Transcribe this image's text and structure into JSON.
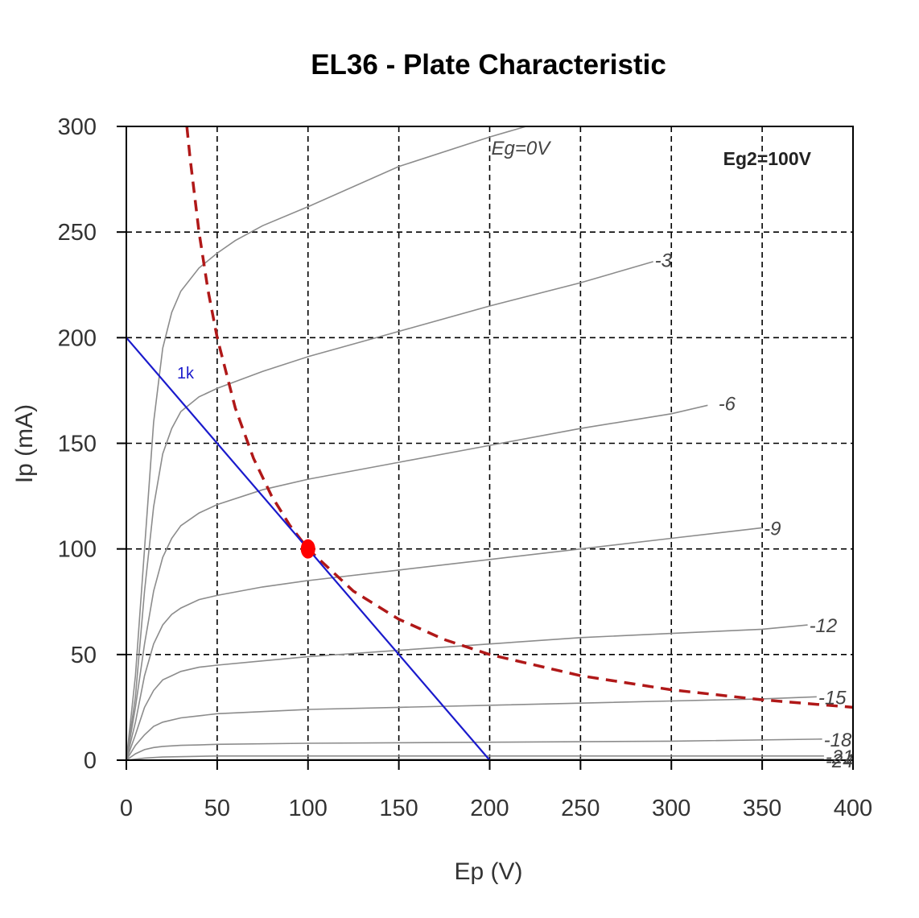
{
  "chart_data": {
    "type": "line",
    "title": "EL36 - Plate Characteristic",
    "xlabel": "Ep (V)",
    "ylabel": "Ip (mA)",
    "xlim": [
      0,
      400
    ],
    "ylim": [
      0,
      300
    ],
    "x_ticks": [
      "0",
      "50",
      "100",
      "150",
      "200",
      "250",
      "300",
      "350",
      "400"
    ],
    "y_ticks": [
      "0",
      "50",
      "100",
      "150",
      "200",
      "250",
      "300"
    ],
    "grid": true,
    "annotation": "Eg2=100V",
    "colors": {
      "curves": "#8c8c8c",
      "load_line": "#1a1acc",
      "dissipation": "#b01818",
      "operating_point": "#ff0000",
      "grid": "#000000"
    },
    "series": [
      {
        "name": "Eg=0V",
        "label": "Eg=0V",
        "label_at": [
          200,
          290
        ],
        "x": [
          0,
          5,
          10,
          15,
          20,
          25,
          30,
          40,
          50,
          60,
          75,
          100,
          150,
          200,
          220
        ],
        "y": [
          0,
          40,
          100,
          160,
          195,
          212,
          222,
          233,
          240,
          246,
          253,
          262,
          281,
          295,
          300
        ]
      },
      {
        "name": "-3",
        "label": "-3",
        "label_at": [
          290,
          237
        ],
        "x": [
          0,
          5,
          10,
          15,
          20,
          25,
          30,
          40,
          50,
          75,
          100,
          150,
          200,
          250,
          290
        ],
        "y": [
          0,
          30,
          80,
          120,
          145,
          157,
          165,
          172,
          176,
          184,
          191,
          203,
          215,
          226,
          236
        ]
      },
      {
        "name": "-6",
        "label": "-6",
        "label_at": [
          325,
          169
        ],
        "x": [
          0,
          5,
          10,
          15,
          20,
          25,
          30,
          40,
          50,
          75,
          100,
          150,
          200,
          250,
          300,
          320
        ],
        "y": [
          0,
          25,
          55,
          80,
          96,
          105,
          111,
          117,
          121,
          128,
          133,
          141,
          149,
          157,
          164,
          168
        ]
      },
      {
        "name": "-9",
        "label": "-9",
        "label_at": [
          350,
          110
        ],
        "x": [
          0,
          5,
          10,
          15,
          20,
          25,
          30,
          40,
          50,
          75,
          100,
          150,
          200,
          250,
          300,
          350
        ],
        "y": [
          0,
          18,
          40,
          55,
          64,
          69,
          72,
          76,
          78,
          82,
          85,
          90,
          95,
          100,
          105,
          110
        ]
      },
      {
        "name": "-12",
        "label": "-12",
        "label_at": [
          375,
          64
        ],
        "x": [
          0,
          5,
          10,
          15,
          20,
          25,
          30,
          40,
          50,
          75,
          100,
          150,
          200,
          250,
          300,
          350,
          375
        ],
        "y": [
          0,
          12,
          25,
          33,
          38,
          40,
          42,
          44,
          45,
          47,
          49,
          52,
          55,
          58,
          60,
          62,
          64
        ]
      },
      {
        "name": "-15",
        "label": "-15",
        "label_at": [
          380,
          30
        ],
        "x": [
          0,
          5,
          10,
          15,
          20,
          30,
          40,
          50,
          75,
          100,
          150,
          200,
          250,
          300,
          350,
          380
        ],
        "y": [
          0,
          7,
          12,
          16,
          18,
          20,
          21,
          22,
          23,
          24,
          25,
          26,
          27,
          28,
          29,
          30
        ]
      },
      {
        "name": "-18",
        "label": "-18",
        "label_at": [
          383,
          10
        ],
        "x": [
          0,
          5,
          10,
          15,
          20,
          30,
          40,
          50,
          100,
          200,
          300,
          383
        ],
        "y": [
          0,
          3,
          5,
          6,
          6.5,
          7,
          7.2,
          7.5,
          8,
          8.5,
          9,
          10
        ]
      },
      {
        "name": "-21",
        "label": "-21",
        "label_at": [
          384,
          2
        ],
        "x": [
          0,
          10,
          20,
          50,
          100,
          200,
          300,
          384
        ],
        "y": [
          0,
          1,
          1.5,
          2,
          2,
          2,
          2,
          2
        ]
      },
      {
        "name": "-24",
        "label": "-24",
        "label_at": [
          384,
          0
        ],
        "x": [
          0,
          50,
          100,
          200,
          300,
          384
        ],
        "y": [
          0,
          0.2,
          0.3,
          0.4,
          0.4,
          0.5
        ]
      }
    ],
    "load_line": {
      "label": "1k",
      "label_at": [
        27,
        180
      ],
      "x": [
        0,
        200
      ],
      "y": [
        200,
        0
      ]
    },
    "max_dissipation": {
      "power_w": 10,
      "x": [
        33.3,
        35,
        40,
        45,
        50,
        60,
        70,
        80,
        90,
        100,
        125,
        150,
        175,
        200,
        250,
        300,
        350,
        400
      ],
      "y": [
        300,
        285.7,
        250,
        222.2,
        200,
        166.7,
        142.9,
        125,
        111.1,
        100,
        80,
        66.7,
        57.1,
        50,
        40,
        33.3,
        28.6,
        25
      ]
    },
    "operating_point": {
      "x": 100,
      "y": 100
    }
  }
}
